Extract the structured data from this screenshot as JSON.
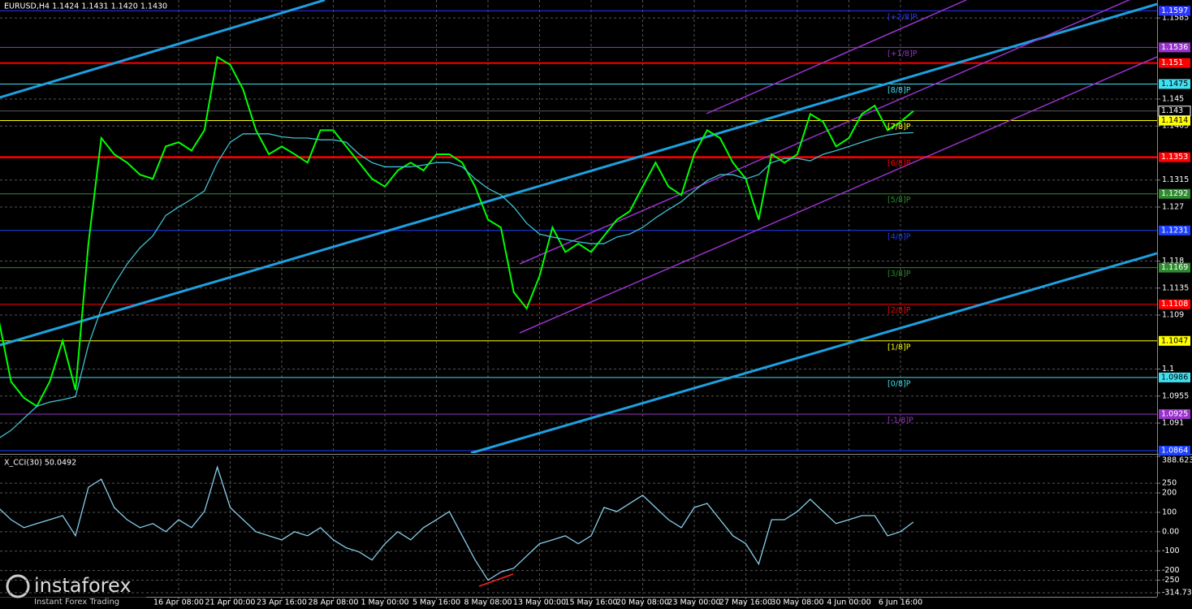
{
  "chart_data": [
    {
      "type": "line",
      "title": "EURUSD,H4  1.1424 1.1431 1.1420 1.1430",
      "categories": [
        null,
        null,
        null,
        null,
        null,
        null,
        null,
        null,
        null,
        null,
        null,
        null,
        null,
        null,
        "16 Apr 08:00",
        null,
        null,
        null,
        "21 Apr 00:00",
        null,
        null,
        null,
        "23 Apr 16:00",
        null,
        null,
        null,
        "28 Apr 08:00",
        null,
        null,
        null,
        "1 May 00:00",
        null,
        null,
        null,
        "5 May 16:00",
        null,
        null,
        null,
        "8 May 08:00",
        null,
        null,
        null,
        "13 May 00:00",
        null,
        null,
        null,
        "15 May 16:00",
        null,
        null,
        null,
        "20 May 08:00",
        null,
        null,
        null,
        "23 May 00:00",
        null,
        null,
        null,
        "27 May 16:00",
        null,
        null,
        null,
        "30 May 08:00",
        null,
        null,
        null,
        "4 Jun 00:00",
        null,
        null,
        null,
        "6 Jun 16:00",
        null
      ],
      "series": [
        {
          "color": "#00ff00",
          "values": [
            1.1087,
            1.0979,
            1.0952,
            1.0938,
            1.0979,
            1.1047,
            1.0965,
            1.1209,
            1.1385,
            1.1358,
            1.1344,
            1.1324,
            1.1317,
            1.1371,
            1.1378,
            1.1364,
            1.1398,
            1.152,
            1.1507,
            1.1466,
            1.1398,
            1.1358,
            1.1371,
            1.1358,
            1.1344,
            1.1398,
            1.1398,
            1.1371,
            1.1344,
            1.1317,
            1.1304,
            1.1331,
            1.1344,
            1.1331,
            1.1358,
            1.1358,
            1.1344,
            1.1304,
            1.1249,
            1.1236,
            1.1128,
            1.1101,
            1.1155,
            1.1236,
            1.1195,
            1.1209,
            1.1195,
            1.1222,
            1.1249,
            1.1263,
            1.1304,
            1.1344,
            1.1304,
            1.129,
            1.1358,
            1.1398,
            1.1385,
            1.1344,
            1.1317,
            1.1249,
            1.1358,
            1.1344,
            1.1358,
            1.1425,
            1.1412,
            1.1371,
            1.1385,
            1.1425,
            1.1439,
            1.1398,
            1.1412,
            1.143
          ]
        },
        {
          "color": "#40bfd0",
          "values": [
            1.0884,
            1.0898,
            1.0918,
            1.0938,
            1.0945,
            1.0949,
            1.0954,
            1.104,
            1.1101,
            1.1141,
            1.1175,
            1.1202,
            1.1222,
            1.1256,
            1.127,
            1.1283,
            1.1297,
            1.1344,
            1.1378,
            1.1392,
            1.1392,
            1.1392,
            1.1387,
            1.1385,
            1.1385,
            1.1382,
            1.1382,
            1.1378,
            1.1358,
            1.1344,
            1.1337,
            1.1337,
            1.1337,
            1.134,
            1.1344,
            1.1344,
            1.1337,
            1.1317,
            1.1301,
            1.129,
            1.127,
            1.1243,
            1.1225,
            1.122,
            1.1216,
            1.1212,
            1.1209,
            1.1209,
            1.122,
            1.1225,
            1.1236,
            1.1252,
            1.1266,
            1.1279,
            1.1297,
            1.1314,
            1.1324,
            1.1324,
            1.1317,
            1.1324,
            1.1344,
            1.1351,
            1.1351,
            1.1347,
            1.1358,
            1.1364,
            1.1371,
            1.1378,
            1.1385,
            1.139,
            1.1393,
            1.1394
          ]
        }
      ],
      "ylim": [
        1.086,
        1.1615
      ],
      "yticks": [
        1.1585,
        1.145,
        1.1405,
        1.1315,
        1.127,
        1.118,
        1.1135,
        1.109,
        1.1,
        1.0955,
        1.091
      ],
      "grid": true,
      "levels": [
        {
          "value": 1.1597,
          "tag": "[+2/8]P",
          "color": "#2b35ff"
        },
        {
          "value": 1.1536,
          "tag": "[+1/8]P",
          "color": "#9932cc"
        },
        {
          "value": 1.151,
          "color": "#ff0000"
        },
        {
          "value": 1.1475,
          "tag": "[8/8]P",
          "color": "#40e0f0"
        },
        {
          "value": 1.1414,
          "tag": "[7/8]P",
          "color": "#ffff00"
        },
        {
          "value": 1.1353,
          "tag": "[6/8]P",
          "color": "#ff0000"
        },
        {
          "value": 1.1292,
          "tag": "[5/8]P",
          "color": "#2e8b2e"
        },
        {
          "value": 1.1231,
          "tag": "[4/8]P",
          "color": "#1e40ff"
        },
        {
          "value": 1.1169,
          "tag": "[3/8]P",
          "color": "#2e8b2e"
        },
        {
          "value": 1.1108,
          "tag": "[2/8]P",
          "color": "#ff0000"
        },
        {
          "value": 1.1047,
          "tag": "[1/8]P",
          "color": "#ffff00"
        },
        {
          "value": 1.0986,
          "tag": "[0/8]P",
          "color": "#40e0f0"
        },
        {
          "value": 1.0925,
          "tag": "[-1/8]P",
          "color": "#9932cc"
        },
        {
          "value": 1.0864,
          "color": "#1e40ff"
        }
      ],
      "price_marker": 1.143
    },
    {
      "type": "line",
      "title": "X_CCI(30) 50.0492",
      "series": [
        {
          "color": "#87ceeb",
          "values": [
            125,
            62,
            21,
            42,
            62,
            83,
            -21,
            229,
            271,
            125,
            62,
            21,
            42,
            0,
            62,
            21,
            104,
            333,
            125,
            62,
            0,
            -21,
            -42,
            0,
            -21,
            21,
            -42,
            -83,
            -104,
            -146,
            -62,
            0,
            -42,
            21,
            62,
            104,
            -21,
            -146,
            -250,
            -208,
            -188,
            -125,
            -62,
            -42,
            -21,
            -62,
            -21,
            125,
            104,
            146,
            188,
            125,
            62,
            21,
            125,
            146,
            62,
            -21,
            -62,
            -167,
            62,
            62,
            104,
            167,
            104,
            42,
            62,
            83,
            83,
            -21,
            0,
            50.0492
          ]
        }
      ],
      "ylim": [
        -314.734,
        388.6237
      ],
      "yticks": [
        388.6237,
        250,
        200,
        100,
        {
          "value": 0,
          "label": "0.00"
        },
        -100,
        -200,
        -250,
        -314.734
      ]
    }
  ],
  "brand": {
    "name": "instaforex",
    "slogan": "Instant Forex Trading"
  }
}
